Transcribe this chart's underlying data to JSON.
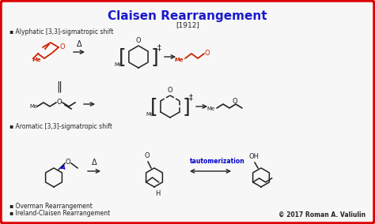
{
  "title": "Claisen Rearrangement",
  "year": "[1912]",
  "bg_color": "#f7f7f7",
  "border_color": "#dd0000",
  "title_color": "#1a1acc",
  "red_color": "#cc2200",
  "blue_color": "#0000cc",
  "black_color": "#222222",
  "aliphatic_label": "▪ Alyphatic [3,3]-sigmatropic shift",
  "aromatic_label": "▪ Aromatic [3,3]-sigmatropic shift",
  "overman_label": "▪ Overman Rearrangement",
  "ireland_label": "▪ Ireland-Claisen Rearrangement",
  "copyright": "© 2017 Roman A. Valiulin",
  "tautomerization": "tautomerization",
  "delta": "Δ",
  "double_bar": "‖"
}
